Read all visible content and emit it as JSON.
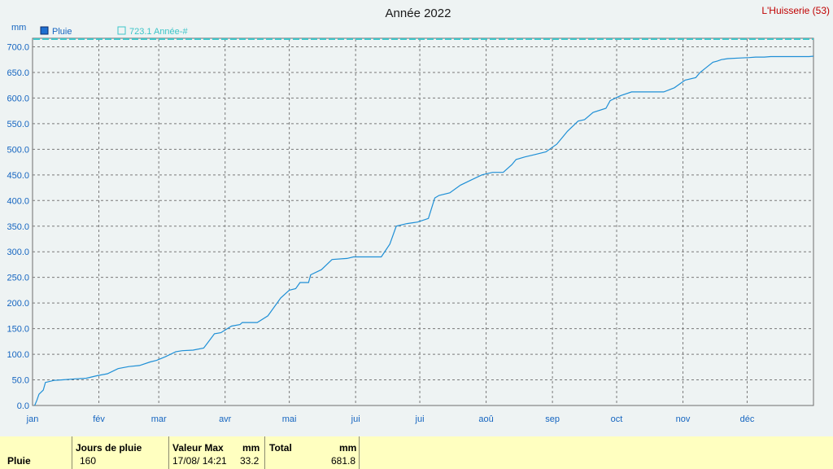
{
  "chart_data": {
    "type": "line",
    "title": "Année 2022",
    "station": "L'Huisserie (53)",
    "ylabel": "mm",
    "ylim": [
      0,
      700
    ],
    "yticks": [
      "0.0",
      "50.0",
      "100.0",
      "150.0",
      "200.0",
      "250.0",
      "300.0",
      "350.0",
      "400.0",
      "450.0",
      "500.0",
      "550.0",
      "600.0",
      "650.0",
      "700.0"
    ],
    "months": [
      "jan",
      "fév",
      "mar",
      "avr",
      "mai",
      "jui",
      "jui",
      "aoû",
      "sep",
      "oct",
      "nov",
      "déc"
    ],
    "grid": true,
    "legend_position": "top-left",
    "series": [
      {
        "name": "Pluie",
        "color": "#1e8fd6",
        "x_day": [
          1,
          2,
          3,
          5,
          6,
          10,
          14,
          20,
          25,
          30,
          35,
          40,
          45,
          50,
          55,
          58,
          62,
          67,
          70,
          75,
          80,
          85,
          88,
          93,
          97,
          98,
          100,
          105,
          110,
          116,
          120,
          123,
          125,
          129,
          130,
          135,
          140,
          147,
          150,
          154,
          159,
          163,
          167,
          170,
          175,
          180,
          185,
          188,
          190,
          195,
          200,
          205,
          210,
          215,
          220,
          224,
          226,
          230,
          235,
          240,
          245,
          248,
          250,
          255,
          258,
          262,
          268,
          270,
          275,
          280,
          285,
          290,
          295,
          300,
          305,
          310,
          312,
          315,
          318,
          320,
          322,
          325,
          330,
          335,
          338,
          342,
          345,
          349,
          352,
          356,
          358,
          360,
          363,
          365
        ],
        "y": [
          0,
          10,
          22,
          30,
          45,
          49,
          50,
          52,
          53,
          58,
          62,
          72,
          76,
          78,
          85,
          88,
          95,
          105,
          107,
          108,
          112,
          140,
          142,
          155,
          158,
          162,
          162,
          162,
          175,
          210,
          225,
          228,
          240,
          240,
          255,
          265,
          285,
          287,
          290,
          290,
          290,
          290,
          315,
          350,
          355,
          358,
          365,
          405,
          410,
          415,
          430,
          440,
          450,
          455,
          455,
          470,
          480,
          485,
          490,
          495,
          510,
          525,
          535,
          555,
          558,
          572,
          580,
          595,
          605,
          612,
          612,
          612,
          612,
          620,
          635,
          640,
          650,
          660,
          670,
          672,
          675,
          677,
          678,
          679,
          680,
          680,
          681,
          681,
          681,
          681,
          681,
          681,
          681,
          681.8
        ]
      },
      {
        "name": "723.1 Année-#",
        "color": "#3cc4c8",
        "constant": 723.1
      }
    ]
  },
  "stats": {
    "row_label": "Pluie",
    "jours_de_pluie_label": "Jours de pluie",
    "jours_de_pluie": "160",
    "valeur_max_label": "Valeur Max",
    "unit": "mm",
    "valeur_max_date": "17/08/ 14:21",
    "valeur_max": "33.2",
    "total_label": "Total",
    "total": "681.8"
  }
}
